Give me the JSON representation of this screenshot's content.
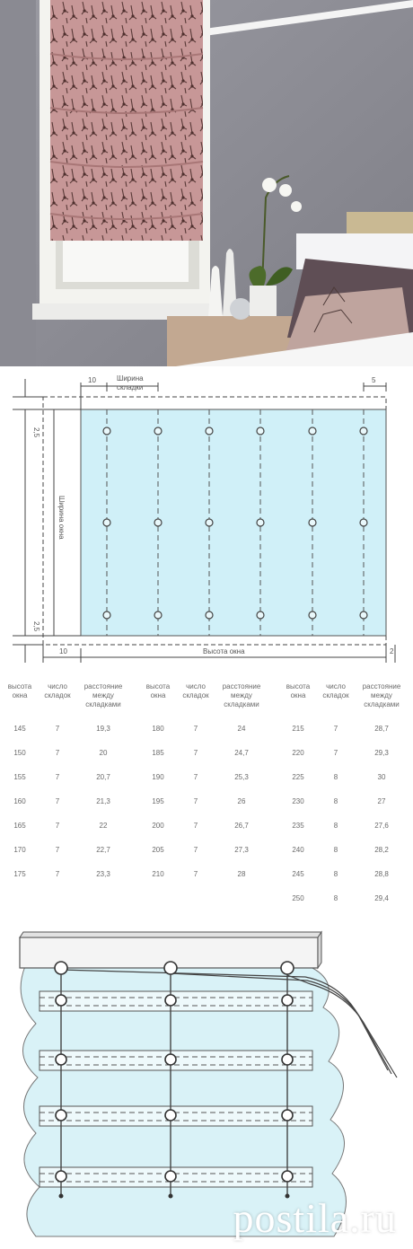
{
  "diagram": {
    "label_10_top": "10",
    "label_fold_width_1": "Ширина",
    "label_fold_width_2": "складки",
    "label_5": "5",
    "label_25_top": "2,5",
    "label_25_bottom": "2,5",
    "label_window_width": "Ширина окна",
    "label_window_height": "Высота окна",
    "label_10_bottom": "10",
    "label_2": "2"
  },
  "table_headers": {
    "height": [
      "высота",
      "окна"
    ],
    "count": [
      "число",
      "складок"
    ],
    "distance": [
      "расстояние",
      "между",
      "складками"
    ]
  },
  "tables": [
    {
      "rows": [
        [
          "145",
          "7",
          "19,3"
        ],
        [
          "150",
          "7",
          "20"
        ],
        [
          "155",
          "7",
          "20,7"
        ],
        [
          "160",
          "7",
          "21,3"
        ],
        [
          "165",
          "7",
          "22"
        ],
        [
          "170",
          "7",
          "22,7"
        ],
        [
          "175",
          "7",
          "23,3"
        ]
      ]
    },
    {
      "rows": [
        [
          "180",
          "7",
          "24"
        ],
        [
          "185",
          "7",
          "24,7"
        ],
        [
          "190",
          "7",
          "25,3"
        ],
        [
          "195",
          "7",
          "26"
        ],
        [
          "200",
          "7",
          "26,7"
        ],
        [
          "205",
          "7",
          "27,3"
        ],
        [
          "210",
          "7",
          "28"
        ]
      ]
    },
    {
      "rows": [
        [
          "215",
          "7",
          "28,7"
        ],
        [
          "220",
          "7",
          "29,3"
        ],
        [
          "225",
          "8",
          "30"
        ],
        [
          "230",
          "8",
          "27"
        ],
        [
          "235",
          "8",
          "27,6"
        ],
        [
          "240",
          "8",
          "28,2"
        ],
        [
          "245",
          "8",
          "28,8"
        ],
        [
          "250",
          "8",
          "29,4"
        ]
      ]
    }
  ],
  "watermark": "postila.ru",
  "colors": {
    "fabric": "#d9f2f7",
    "diagram_fill": "#d0f0f8",
    "blind": "#c99a9a",
    "wall": "#8f8f97"
  }
}
